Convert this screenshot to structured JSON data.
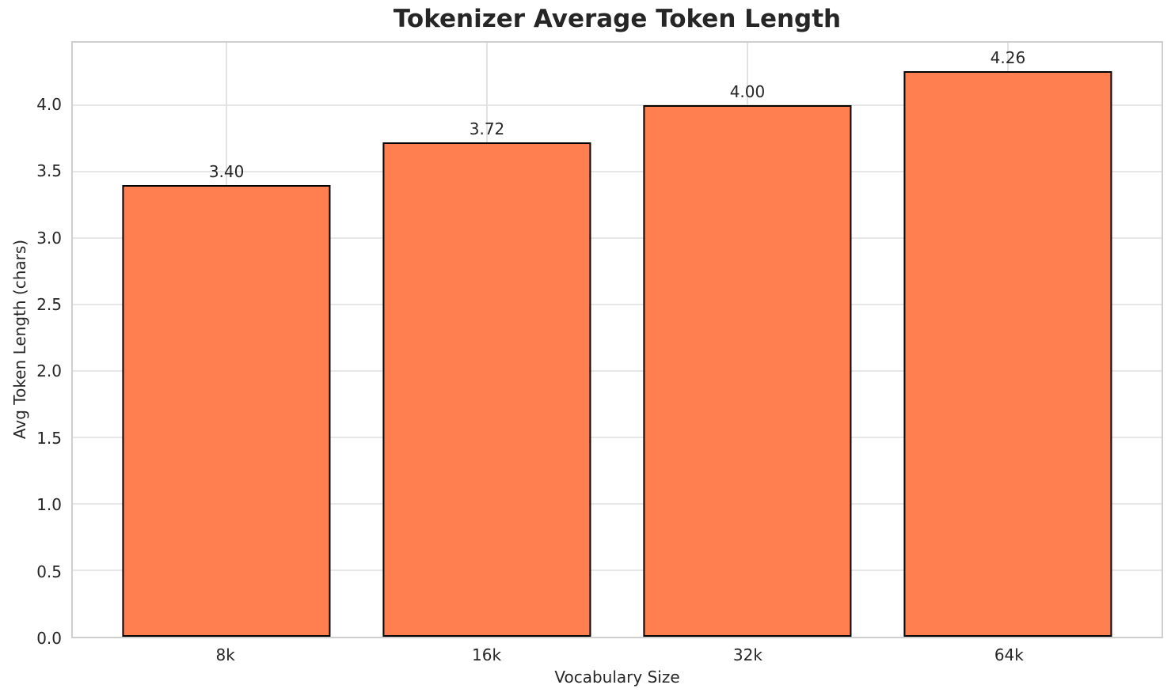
{
  "chart_data": {
    "type": "bar",
    "title": "Tokenizer Average Token Length",
    "xlabel": "Vocabulary Size",
    "ylabel": "Avg Token Length (chars)",
    "categories": [
      "8k",
      "16k",
      "32k",
      "64k"
    ],
    "values": [
      3.4,
      3.72,
      4.0,
      4.26
    ],
    "value_labels": [
      "3.40",
      "3.72",
      "4.00",
      "4.26"
    ],
    "ytick_labels": [
      "0.0",
      "0.5",
      "1.0",
      "1.5",
      "2.0",
      "2.5",
      "3.0",
      "3.5",
      "4.0"
    ],
    "yticks": [
      0.0,
      0.5,
      1.0,
      1.5,
      2.0,
      2.5,
      3.0,
      3.5,
      4.0
    ],
    "ylim": [
      0,
      4.473
    ],
    "xlim": [
      -0.59,
      3.59
    ],
    "bar_width_units": 0.8,
    "grid": true,
    "legend": "none",
    "colors": {
      "bar_fill": "#FF7F50",
      "bar_edge": "#000000",
      "grid_line": "#e7e7e7",
      "spine": "#cfcfcf",
      "text": "#262626",
      "background": "#ffffff"
    }
  }
}
